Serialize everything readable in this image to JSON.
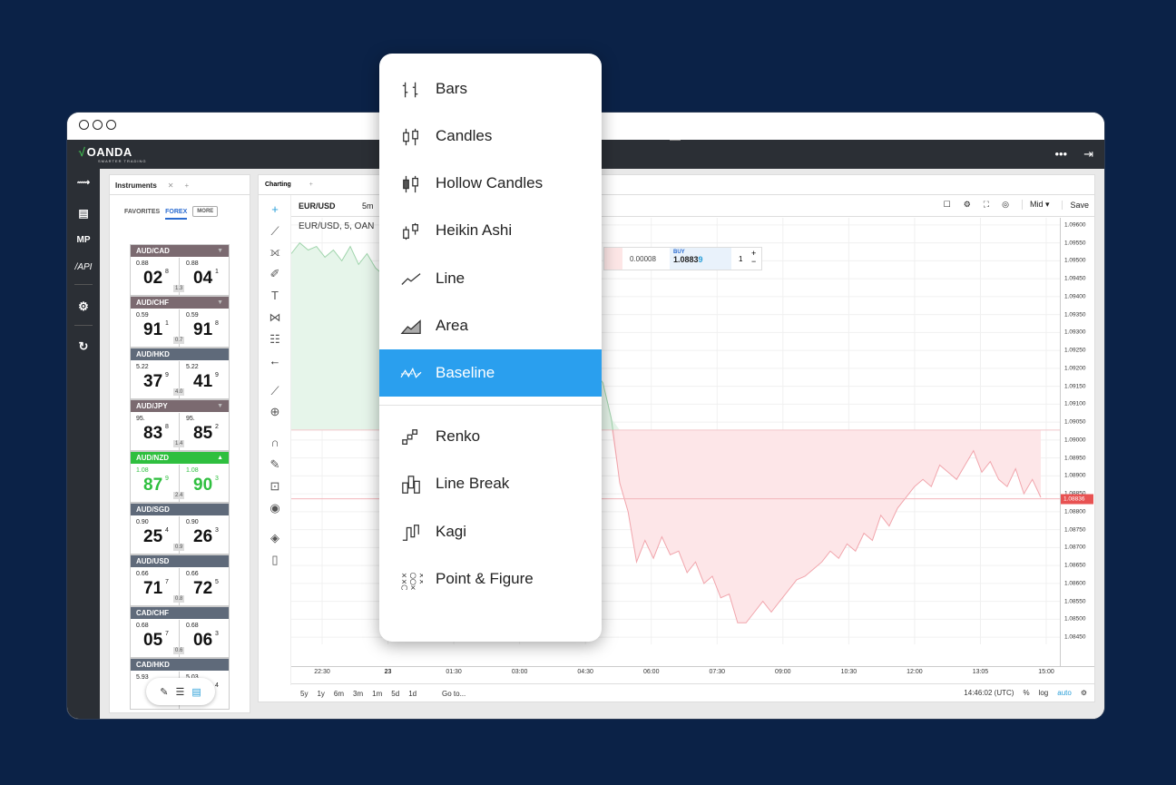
{
  "window": {
    "brand": "OANDA",
    "brand_sub": "SMARTER TRADING"
  },
  "sidebar": {
    "items": [
      {
        "icon": "exchange-icon",
        "label": "⟿"
      },
      {
        "icon": "news-icon",
        "label": "▤"
      },
      {
        "icon": "mp-icon",
        "label": "MP"
      },
      {
        "icon": "api-icon",
        "label": "/API"
      },
      {
        "icon": "settings-icon",
        "label": "⚙"
      },
      {
        "icon": "refresh-icon",
        "label": "↻"
      }
    ]
  },
  "instruments": {
    "tab": "Instruments",
    "subtabs": {
      "favorites": "FAVORITES",
      "forex": "FOREX",
      "more": "MORE"
    },
    "cards": [
      {
        "pair": "AUD/CAD",
        "hd": "rose",
        "sell_pfx": "0.88",
        "sell_big": "02",
        "sell_sup": "8",
        "spread": "1.3",
        "buy_pfx": "0.88",
        "buy_big": "04",
        "buy_sup": "1"
      },
      {
        "pair": "AUD/CHF",
        "hd": "rose",
        "sell_pfx": "0.59",
        "sell_big": "91",
        "sell_sup": "1",
        "spread": "0.7",
        "buy_pfx": "0.59",
        "buy_big": "91",
        "buy_sup": "8"
      },
      {
        "pair": "AUD/HKD",
        "hd": "blue",
        "sell_pfx": "5.22",
        "sell_big": "37",
        "sell_sup": "9",
        "spread": "4.0",
        "buy_pfx": "5.22",
        "buy_big": "41",
        "buy_sup": "9"
      },
      {
        "pair": "AUD/JPY",
        "hd": "rose",
        "sell_pfx": "95.",
        "sell_big": "83",
        "sell_sup": "8",
        "spread": "1.4",
        "buy_pfx": "95.",
        "buy_big": "85",
        "buy_sup": "2"
      },
      {
        "pair": "AUD/NZD",
        "hd": "green",
        "sell_pfx": "1.08",
        "sell_big": "87",
        "sell_sup": "9",
        "spread": "2.4",
        "buy_pfx": "1.08",
        "buy_big": "90",
        "buy_sup": "3"
      },
      {
        "pair": "AUD/SGD",
        "hd": "blue",
        "sell_pfx": "0.90",
        "sell_big": "25",
        "sell_sup": "4",
        "spread": "0.9",
        "buy_pfx": "0.90",
        "buy_big": "26",
        "buy_sup": "3"
      },
      {
        "pair": "AUD/USD",
        "hd": "blue",
        "sell_pfx": "0.66",
        "sell_big": "71",
        "sell_sup": "7",
        "spread": "0.8",
        "buy_pfx": "0.66",
        "buy_big": "72",
        "buy_sup": "5"
      },
      {
        "pair": "CAD/CHF",
        "hd": "blue",
        "sell_pfx": "0.68",
        "sell_big": "05",
        "sell_sup": "7",
        "spread": "0.6",
        "buy_pfx": "0.68",
        "buy_big": "06",
        "buy_sup": "3"
      },
      {
        "pair": "CAD/HKD",
        "hd": "blue",
        "sell_pfx": "5.93",
        "sell_big": "",
        "sell_sup": "",
        "spread": "",
        "buy_pfx": "5.03",
        "buy_big": "",
        "buy_sup": "4"
      }
    ]
  },
  "charting": {
    "tab": "Charting",
    "symbol": "EUR/USD",
    "timeframe": "5m",
    "legend": "EUR/USD, 5, OAN",
    "price_side": "Mid ▾",
    "save": "Save",
    "trade": {
      "spread": "0.00008",
      "buy_label": "BUY",
      "buy_price_main": "1.0883",
      "buy_price_last": "9",
      "qty": "1"
    },
    "current_price": "1.08836",
    "ranges": [
      "5y",
      "1y",
      "6m",
      "3m",
      "1m",
      "5d",
      "1d"
    ],
    "goto": "Go to...",
    "clock": "14:46:02 (UTC)",
    "percent": "%",
    "log": "log",
    "auto": "auto"
  },
  "chart_data": {
    "type": "area",
    "title": "EUR/USD, 5, OAN",
    "x_ticks": [
      "22:30",
      "23",
      "01:30",
      "03:00",
      "04:30",
      "06:00",
      "07:30",
      "09:00",
      "10:30",
      "12:00",
      "13:05",
      "15:00"
    ],
    "y_ticks": [
      "1.09600",
      "1.09550",
      "1.09500",
      "1.09450",
      "1.09400",
      "1.09350",
      "1.09300",
      "1.09250",
      "1.09200",
      "1.09150",
      "1.09100",
      "1.09050",
      "1.09000",
      "1.08950",
      "1.08900",
      "1.08850",
      "1.08800",
      "1.08750",
      "1.08700",
      "1.08650",
      "1.08600",
      "1.08550",
      "1.08500",
      "1.08450"
    ],
    "ylim": [
      1.0843,
      1.0962
    ],
    "baseline": 1.09028,
    "series": [
      {
        "values": [
          1.0952,
          1.0955,
          1.0953,
          1.0954,
          1.0951,
          1.0953,
          1.095,
          1.0954,
          1.0949,
          1.0952,
          1.0948,
          1.0946,
          1.0943,
          1.0945,
          1.0941,
          1.0938,
          1.094,
          1.0936,
          1.0934,
          1.0931,
          1.0933,
          1.093,
          1.0933,
          1.0928,
          1.0932,
          1.0929,
          1.0931,
          1.0927,
          1.0926,
          1.0922,
          1.0925,
          1.0921,
          1.0918,
          1.092,
          1.0921,
          1.0918,
          1.0919,
          1.0916,
          1.0906,
          1.0888,
          1.088,
          1.0866,
          1.0872,
          1.0867,
          1.0873,
          1.0868,
          1.0869,
          1.0863,
          1.0866,
          1.086,
          1.0862,
          1.0856,
          1.0857,
          1.0849,
          1.0849,
          1.0852,
          1.0855,
          1.0852,
          1.0855,
          1.0858,
          1.0861,
          1.0862,
          1.0864,
          1.0866,
          1.0869,
          1.0867,
          1.0871,
          1.0869,
          1.0874,
          1.0872,
          1.0879,
          1.0876,
          1.0881,
          1.0884,
          1.0887,
          1.0889,
          1.0887,
          1.0893,
          1.0891,
          1.0889,
          1.0893,
          1.0897,
          1.0891,
          1.0894,
          1.0889,
          1.0887,
          1.0892,
          1.0885,
          1.0889,
          1.0884
        ]
      }
    ],
    "current": 1.08836
  },
  "chart_menu": {
    "items": [
      {
        "icon": "bars-icon",
        "label": "Bars"
      },
      {
        "icon": "candles-icon",
        "label": "Candles"
      },
      {
        "icon": "hollow-candles-icon",
        "label": "Hollow Candles"
      },
      {
        "icon": "heikin-ashi-icon",
        "label": "Heikin Ashi"
      },
      {
        "icon": "line-icon",
        "label": "Line"
      },
      {
        "icon": "area-icon",
        "label": "Area"
      },
      {
        "icon": "baseline-icon",
        "label": "Baseline",
        "selected": true
      },
      {
        "icon": "renko-icon",
        "label": "Renko"
      },
      {
        "icon": "line-break-icon",
        "label": "Line Break"
      },
      {
        "icon": "kagi-icon",
        "label": "Kagi"
      },
      {
        "icon": "point-figure-icon",
        "label": "Point & Figure"
      }
    ]
  }
}
